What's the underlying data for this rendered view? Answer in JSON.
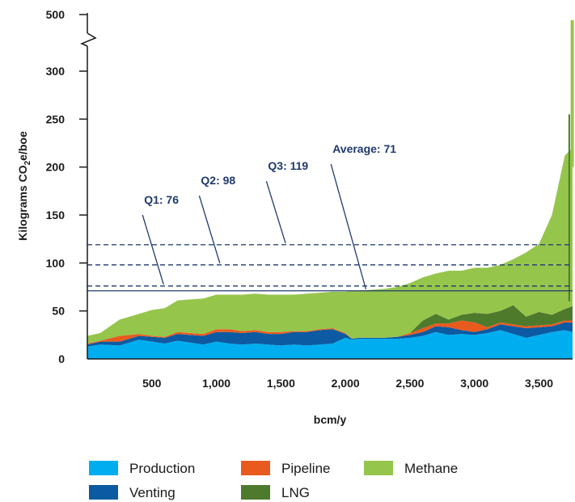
{
  "chart_data": {
    "type": "area",
    "xlabel": "bcm/y",
    "ylabel_main": "Kilograms CO",
    "ylabel_sub": "2",
    "ylabel_rest": "e/boe",
    "x_ticks": [
      "500",
      "1,000",
      "1,500",
      "2,000",
      "2,500",
      "3,000",
      "3,500"
    ],
    "x_tick_values": [
      500,
      1000,
      1500,
      2000,
      2500,
      3000,
      3500
    ],
    "y_ticks": [
      "0",
      "50",
      "100",
      "150",
      "200",
      "250",
      "300",
      "500"
    ],
    "y_tick_values": [
      0,
      50,
      100,
      150,
      200,
      250,
      300,
      500
    ],
    "xlim": [
      0,
      3760
    ],
    "ylim": [
      0,
      340
    ],
    "y_axis_break": "between 300 and 500",
    "reference_lines": [
      {
        "label": "Q1: 76",
        "value": 76,
        "style": "dashed",
        "label_x": 440,
        "label_y": 162
      },
      {
        "label": "Q2: 98",
        "value": 98,
        "style": "dashed",
        "label_x": 880,
        "label_y": 182
      },
      {
        "label": "Q3: 119",
        "value": 119,
        "style": "dashed",
        "label_x": 1400,
        "label_y": 197
      },
      {
        "label": "Average: 71",
        "value": 71,
        "style": "solid",
        "label_x": 1900,
        "label_y": 215
      }
    ],
    "series": [
      {
        "name": "Production",
        "color": "#00aeef",
        "x": [
          0,
          100,
          250,
          400,
          500,
          600,
          700,
          800,
          900,
          1000,
          1100,
          1200,
          1300,
          1400,
          1500,
          1600,
          1700,
          1800,
          1900,
          2000,
          2050,
          2100,
          2200,
          2300,
          2400,
          2500,
          2600,
          2700,
          2800,
          2900,
          3000,
          3100,
          3200,
          3300,
          3400,
          3500,
          3600,
          3700,
          3760
        ],
        "values": [
          13,
          15,
          14,
          20,
          18,
          16,
          19,
          17,
          15,
          18,
          16,
          15,
          16,
          15,
          14,
          15,
          14,
          15,
          16,
          22,
          20,
          21,
          21,
          21,
          21,
          22,
          24,
          28,
          25,
          26,
          25,
          27,
          30,
          26,
          22,
          25,
          28,
          30,
          28
        ]
      },
      {
        "name": "Venting",
        "color": "#0b5aa2",
        "x": [
          0,
          100,
          250,
          400,
          500,
          600,
          700,
          800,
          900,
          1000,
          1100,
          1200,
          1300,
          1400,
          1500,
          1600,
          1700,
          1800,
          1900,
          2000,
          2050,
          2100,
          2200,
          2300,
          2400,
          2500,
          2600,
          2700,
          2800,
          2900,
          3000,
          3100,
          3200,
          3300,
          3400,
          3500,
          3600,
          3700,
          3760
        ],
        "values": [
          2,
          3,
          4,
          4,
          5,
          6,
          7,
          8,
          9,
          10,
          12,
          12,
          12,
          11,
          12,
          13,
          14,
          15,
          15,
          4,
          1,
          1,
          1,
          1,
          2,
          3,
          4,
          6,
          8,
          4,
          3,
          4,
          6,
          8,
          10,
          8,
          6,
          8,
          10
        ]
      },
      {
        "name": "Pipeline",
        "color": "#e85a1e",
        "x": [
          0,
          100,
          250,
          400,
          500,
          600,
          700,
          800,
          900,
          1000,
          1100,
          1200,
          1300,
          1400,
          1500,
          1600,
          1700,
          1800,
          1900,
          2000,
          2050,
          2100,
          2200,
          2300,
          2400,
          2500,
          2600,
          2700,
          2800,
          2900,
          3000,
          3100,
          3200,
          3300,
          3400,
          3500,
          3600,
          3700,
          3760
        ],
        "values": [
          1,
          1,
          6,
          2,
          1,
          1,
          2,
          2,
          2,
          3,
          3,
          2,
          2,
          2,
          2,
          1,
          1,
          1,
          1,
          1,
          0,
          0,
          0,
          0,
          0,
          2,
          4,
          3,
          4,
          10,
          10,
          2,
          2,
          2,
          2,
          2,
          2,
          2,
          2
        ]
      },
      {
        "name": "LNG",
        "color": "#4e7a2c",
        "x": [
          0,
          100,
          250,
          400,
          500,
          600,
          700,
          800,
          900,
          1000,
          1100,
          1200,
          1300,
          1400,
          1500,
          1600,
          1700,
          1800,
          1900,
          2000,
          2050,
          2100,
          2200,
          2300,
          2400,
          2500,
          2600,
          2700,
          2800,
          2900,
          3000,
          3100,
          3200,
          3300,
          3400,
          3500,
          3600,
          3700,
          3760
        ],
        "values": [
          0,
          0,
          0,
          0,
          0,
          0,
          0,
          0,
          0,
          0,
          0,
          0,
          0,
          0,
          0,
          0,
          0,
          0,
          0,
          0,
          0,
          0,
          0,
          0,
          0,
          0,
          8,
          10,
          4,
          6,
          10,
          14,
          12,
          20,
          10,
          14,
          10,
          12,
          15
        ]
      },
      {
        "name": "Methane",
        "color": "#96c54c",
        "x": [
          0,
          100,
          250,
          400,
          500,
          600,
          700,
          800,
          900,
          1000,
          1100,
          1200,
          1300,
          1400,
          1500,
          1600,
          1700,
          1800,
          1900,
          2000,
          2050,
          2100,
          2200,
          2300,
          2400,
          2500,
          2600,
          2700,
          2800,
          2900,
          3000,
          3100,
          3200,
          3300,
          3400,
          3500,
          3600,
          3700,
          3760
        ],
        "values": [
          8,
          8,
          17,
          21,
          27,
          30,
          33,
          35,
          37,
          36,
          36,
          38,
          38,
          39,
          39,
          38,
          39,
          38,
          38,
          43,
          50,
          49,
          50,
          51,
          52,
          52,
          45,
          42,
          51,
          46,
          47,
          48,
          48,
          48,
          67,
          71,
          104,
          160,
          165
        ]
      }
    ]
  },
  "legend": {
    "items": [
      {
        "label": "Production",
        "color": "#00aeef"
      },
      {
        "label": "Pipeline",
        "color": "#e85a1e"
      },
      {
        "label": "Methane",
        "color": "#96c54c"
      },
      {
        "label": "Venting",
        "color": "#0b5aa2"
      },
      {
        "label": "LNG",
        "color": "#4e7a2c"
      }
    ]
  },
  "colors": {
    "reference_line": "#1f3a6e",
    "axis": "#1a1a1a"
  }
}
